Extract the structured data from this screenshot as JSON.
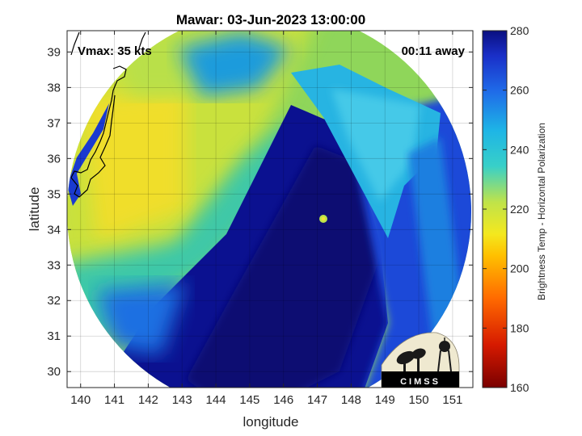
{
  "title": "Mawar: 03-Jun-2023 13:00:00",
  "vmax_label": "Vmax: 35 kts",
  "time_label": "00:11 away",
  "logo_text": "CIMSS",
  "chart_data": {
    "type": "heatmap",
    "xlabel": "longitude",
    "ylabel": "latitude",
    "xlim": [
      139.6,
      151.6
    ],
    "ylim": [
      29.55,
      39.6
    ],
    "xticks": [
      140,
      141,
      142,
      143,
      144,
      145,
      146,
      147,
      148,
      149,
      150,
      151
    ],
    "yticks": [
      30,
      31,
      32,
      33,
      34,
      35,
      36,
      37,
      38,
      39
    ],
    "grid": true,
    "colorbar": {
      "label": "Brightness Temp - Horizontal Polarization",
      "min": 160,
      "max": 280,
      "ticks": [
        160,
        180,
        200,
        220,
        240,
        260,
        280
      ]
    },
    "colors": {
      "deep": "#0a0f8a",
      "cold": "#1d4fe0",
      "mid": "#1fb2df",
      "warm": "#cfe03a",
      "hot": "#f2dc2a"
    }
  }
}
